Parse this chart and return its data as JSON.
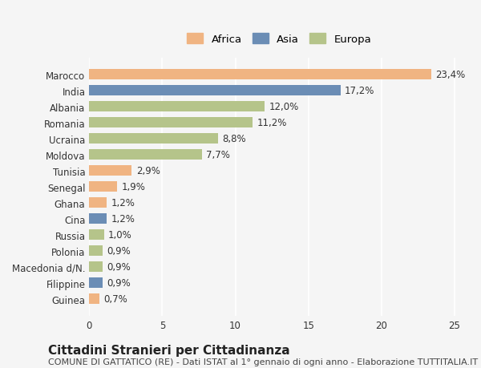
{
  "countries": [
    "Marocco",
    "India",
    "Albania",
    "Romania",
    "Ucraina",
    "Moldova",
    "Tunisia",
    "Senegal",
    "Ghana",
    "Cina",
    "Russia",
    "Polonia",
    "Macedonia d/N.",
    "Filippine",
    "Guinea"
  ],
  "values": [
    23.4,
    17.2,
    12.0,
    11.2,
    8.8,
    7.7,
    2.9,
    1.9,
    1.2,
    1.2,
    1.0,
    0.9,
    0.9,
    0.9,
    0.7
  ],
  "labels": [
    "23,4%",
    "17,2%",
    "12,0%",
    "11,2%",
    "8,8%",
    "7,7%",
    "2,9%",
    "1,9%",
    "1,2%",
    "1,2%",
    "1,0%",
    "0,9%",
    "0,9%",
    "0,9%",
    "0,7%"
  ],
  "colors": [
    "#f0b482",
    "#6b8db5",
    "#b5c48a",
    "#b5c48a",
    "#b5c48a",
    "#b5c48a",
    "#f0b482",
    "#f0b482",
    "#f0b482",
    "#6b8db5",
    "#b5c48a",
    "#b5c48a",
    "#b5c48a",
    "#6b8db5",
    "#f0b482"
  ],
  "continents": [
    "Africa",
    "Asia",
    "Europa",
    "Europa",
    "Europa",
    "Europa",
    "Africa",
    "Africa",
    "Africa",
    "Asia",
    "Europa",
    "Europa",
    "Europa",
    "Asia",
    "Africa"
  ],
  "legend_labels": [
    "Africa",
    "Asia",
    "Europa"
  ],
  "legend_colors": [
    "#f0b482",
    "#6b8db5",
    "#b5c48a"
  ],
  "title": "Cittadini Stranieri per Cittadinanza",
  "subtitle": "COMUNE DI GATTATICO (RE) - Dati ISTAT al 1° gennaio di ogni anno - Elaborazione TUTTITALIA.IT",
  "xlim": [
    0,
    26
  ],
  "xticks": [
    0,
    5,
    10,
    15,
    20,
    25
  ],
  "background_color": "#f5f5f5",
  "bar_height": 0.65,
  "label_fontsize": 8.5,
  "tick_fontsize": 8.5,
  "title_fontsize": 11,
  "subtitle_fontsize": 8
}
